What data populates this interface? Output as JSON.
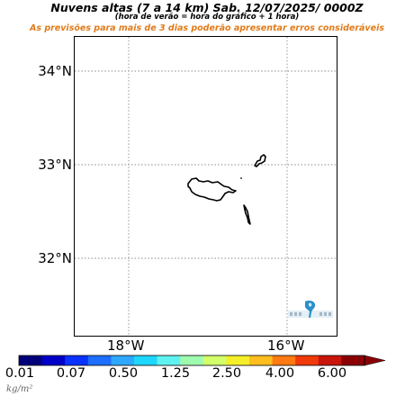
{
  "header": {
    "title": "Nuvens altas (7 a 14 km)  Sab. 12/07/2025/ 0000Z",
    "subtitle": "(hora de verão = hora do gráfico + 1 hora)",
    "warning": "As previsões para mais de 3 dias poderão apresentar erros consideráveis",
    "warning_color": "#e07b1a"
  },
  "map": {
    "lat_labels": [
      "34°N",
      "33°N",
      "32°N"
    ],
    "lon_labels": [
      "18°W",
      "16°W"
    ],
    "grid": true,
    "grid_style": "dotted",
    "features": [
      "Madeira",
      "Porto Santo",
      "Desertas"
    ]
  },
  "colorbar": {
    "tick_labels": [
      "0.01",
      "0.07",
      "0.50",
      "1.25",
      "2.50",
      "4.00",
      "6.00"
    ],
    "colors": [
      "#00007a",
      "#0000c8",
      "#0a32ff",
      "#1e6eff",
      "#2ea8ff",
      "#1ed7ff",
      "#5ff2f0",
      "#9ffbb0",
      "#d2ff6a",
      "#f5ef2a",
      "#ffbe1e",
      "#ff7a12",
      "#f03a0a",
      "#c8140a",
      "#8a0005"
    ],
    "units_text": "kg/m²"
  },
  "logo": {
    "icon": "meteorology-logo-icon"
  }
}
